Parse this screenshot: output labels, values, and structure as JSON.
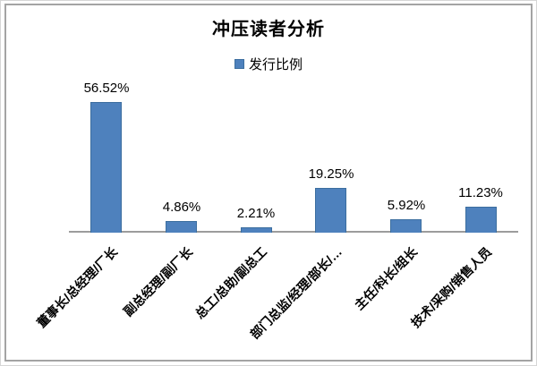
{
  "colors": {
    "bar_fill": "#4e81bd",
    "bar_border": "#3c6e9f",
    "axis_line": "#9c9c9c",
    "frame_border": "#a4a4a4",
    "text": "#000000",
    "background": "#ffffff"
  },
  "chart_data": {
    "type": "bar",
    "title": "冲压读者分析",
    "categories": [
      "董事长/总经理/厂长",
      "副总经理/副厂长",
      "总工/总助/副总工",
      "部门总监/经理/部长/…",
      "主任/科长/组长",
      "技术/采购/销售人员"
    ],
    "series": [
      {
        "name": "发行比例",
        "values": [
          56.52,
          4.86,
          2.21,
          19.25,
          5.92,
          11.23
        ]
      }
    ],
    "data_labels": [
      "56.52%",
      "4.86%",
      "2.21%",
      "19.25%",
      "5.92%",
      "11.23%"
    ],
    "xlabel": "",
    "ylabel": "",
    "ylim": [
      0,
      60
    ],
    "grid": false,
    "legend_position": "top-center",
    "x_tick_rotation": 45
  }
}
